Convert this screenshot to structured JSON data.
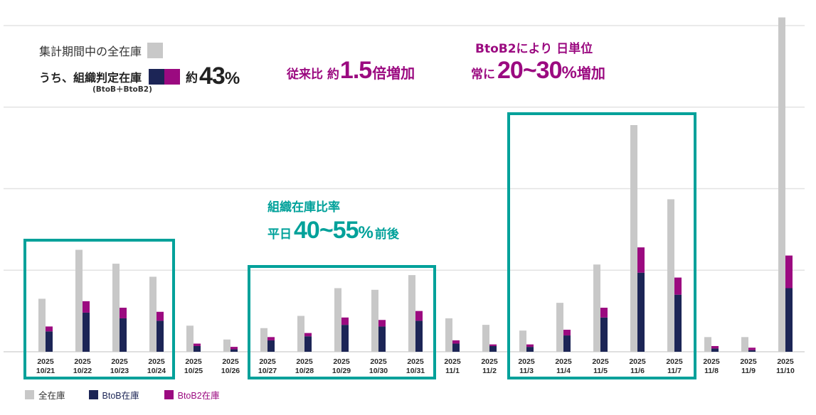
{
  "colors": {
    "total": "#c8c8c8",
    "btob": "#1c2556",
    "btob2": "#9b0a80",
    "highlight": "#00a19a"
  },
  "annotations": {
    "summary_total_label": "集計期間中の全在庫",
    "summary_org_label": "うち、組織判定在庫",
    "summary_org_sub": "(BtoB＋BtoB2)",
    "summary_approx": "約",
    "summary_pct": "43",
    "summary_pct_unit": "%",
    "growth_prefix": "従来比 約",
    "growth_value": "1.5",
    "growth_suffix": "倍増加",
    "btob2_line1": "BtoB2により 日単位",
    "btob2_prefix": "常に",
    "btob2_value": "20~30",
    "btob2_unit": "%",
    "btob2_suffix": "増加",
    "ratio_line1": "組織在庫比率",
    "ratio_prefix": "平日",
    "ratio_value": "40~55",
    "ratio_unit": "%",
    "ratio_suffix": "前後"
  },
  "chart_data": {
    "type": "bar",
    "title": "",
    "xlabel": "",
    "ylabel": "",
    "y_units": "relative (gridline spacing = 1)",
    "ylim": [
      0,
      4.1
    ],
    "grid": true,
    "legend_position": "bottom-left",
    "categories": [
      [
        "2025",
        "10/21"
      ],
      [
        "2025",
        "10/22"
      ],
      [
        "2025",
        "10/23"
      ],
      [
        "2025",
        "10/24"
      ],
      [
        "2025",
        "10/25"
      ],
      [
        "2025",
        "10/26"
      ],
      [
        "2025",
        "10/27"
      ],
      [
        "2025",
        "10/28"
      ],
      [
        "2025",
        "10/29"
      ],
      [
        "2025",
        "10/30"
      ],
      [
        "2025",
        "10/31"
      ],
      [
        "2025",
        "11/1"
      ],
      [
        "2025",
        "11/2"
      ],
      [
        "2025",
        "11/3"
      ],
      [
        "2025",
        "11/4"
      ],
      [
        "2025",
        "11/5"
      ],
      [
        "2025",
        "11/6"
      ],
      [
        "2025",
        "11/7"
      ],
      [
        "2025",
        "11/8"
      ],
      [
        "2025",
        "11/9"
      ],
      [
        "2025",
        "11/10"
      ]
    ],
    "series": [
      {
        "name": "全在庫",
        "stack": "total",
        "values": [
          0.65,
          1.25,
          1.08,
          0.92,
          0.32,
          0.15,
          0.29,
          0.44,
          0.78,
          0.76,
          0.94,
          0.41,
          0.33,
          0.26,
          0.6,
          1.07,
          2.78,
          1.87,
          0.18,
          0.18,
          4.1
        ]
      },
      {
        "name": "BtoB在庫",
        "stack": "org",
        "values": [
          0.25,
          0.48,
          0.41,
          0.38,
          0.07,
          0.03,
          0.14,
          0.19,
          0.33,
          0.31,
          0.38,
          0.1,
          0.07,
          0.06,
          0.2,
          0.42,
          0.97,
          0.7,
          0.04,
          0.02,
          0.78
        ]
      },
      {
        "name": "BtoB2在庫",
        "stack": "org",
        "values": [
          0.06,
          0.14,
          0.13,
          0.11,
          0.03,
          0.03,
          0.04,
          0.04,
          0.09,
          0.08,
          0.12,
          0.04,
          0.02,
          0.03,
          0.07,
          0.12,
          0.31,
          0.21,
          0.03,
          0.03,
          0.4
        ]
      }
    ],
    "highlight_groups": [
      [
        "10/21",
        "10/24"
      ],
      [
        "10/27",
        "10/31"
      ],
      [
        "11/3",
        "11/7"
      ]
    ]
  }
}
